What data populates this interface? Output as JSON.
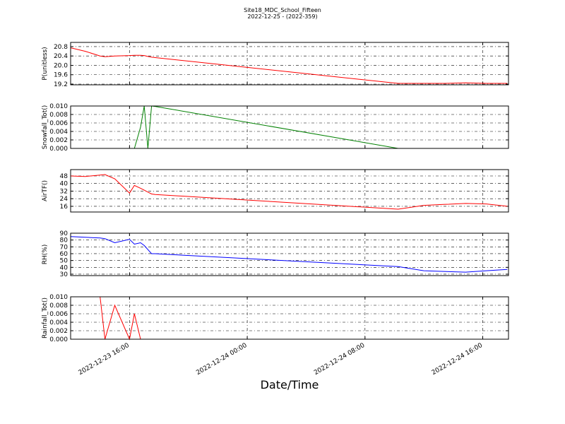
{
  "title": "Site18_MDC_School_Fifteen",
  "subtitle": "2022-12-25 - (2022-359)",
  "xlabel": "Date/Time",
  "xlim": [
    "2022-12-23 12:00",
    "2022-12-24 17:45"
  ],
  "xticks": [
    "2022-12-23 16:00",
    "2022-12-24 00:00",
    "2022-12-24 08:00",
    "2022-12-24 16:00"
  ],
  "chart_data": [
    {
      "type": "line",
      "ylabel": "P(unitless)",
      "grid": true,
      "x": [
        "2022-12-23 12:00",
        "2022-12-23 13:00",
        "2022-12-23 14:00",
        "2022-12-23 14:20",
        "2022-12-23 15:00",
        "2022-12-23 16:00",
        "2022-12-23 16:20",
        "2022-12-23 16:45",
        "2022-12-23 17:00",
        "2022-12-23 17:15",
        "2022-12-23 17:30",
        "2022-12-23 17:45",
        "2022-12-24 10:15",
        "2022-12-24 12:00",
        "2022-12-24 13:20",
        "2022-12-24 14:50",
        "2022-12-24 16:15",
        "2022-12-24 17:40"
      ],
      "series": [
        {
          "color": "#ff0000",
          "values": [
            20.75,
            20.6,
            20.4,
            20.37,
            20.4,
            20.42,
            20.43,
            20.43,
            20.42,
            20.38,
            20.35,
            20.33,
            19.23,
            19.23,
            19.23,
            19.25,
            19.23,
            19.23
          ]
        }
      ],
      "ylim": [
        19.17,
        20.98
      ],
      "yticks": [
        19.2,
        19.6,
        {
          "value": 20,
          "label": "20.0"
        },
        20.4,
        20.8
      ]
    },
    {
      "type": "line",
      "ylabel": "Snowfall_Tot()",
      "grid": true,
      "x": [
        "2022-12-23 12:00",
        "2022-12-23 13:00",
        "2022-12-23 14:00",
        "2022-12-23 14:20",
        "2022-12-23 15:00",
        "2022-12-23 16:00",
        "2022-12-23 16:20",
        "2022-12-23 16:45",
        "2022-12-23 17:00",
        "2022-12-23 17:15",
        "2022-12-23 17:30",
        "2022-12-23 17:45",
        "2022-12-24 10:15",
        "2022-12-24 12:00",
        "2022-12-24 13:20",
        "2022-12-24 14:50",
        "2022-12-24 16:15",
        "2022-12-24 17:40"
      ],
      "series": [
        {
          "color": "#008000",
          "values": [
            0,
            0,
            0,
            0,
            0,
            0,
            0,
            0.005,
            0.01,
            0,
            0.01,
            0.0099,
            0,
            0,
            0,
            0,
            0,
            0
          ]
        }
      ],
      "ylim": [
        0,
        0.01
      ],
      "yticks": [
        {
          "value": 0,
          "label": "0.000"
        },
        {
          "value": 0.002,
          "label": "0.002"
        },
        {
          "value": 0.004,
          "label": "0.004"
        },
        {
          "value": 0.006,
          "label": "0.006"
        },
        {
          "value": 0.008,
          "label": "0.008"
        },
        {
          "value": 0.01,
          "label": "0.010"
        }
      ]
    },
    {
      "type": "line",
      "ylabel": "AirTF()",
      "grid": true,
      "x": [
        "2022-12-23 12:00",
        "2022-12-23 13:00",
        "2022-12-23 14:00",
        "2022-12-23 14:20",
        "2022-12-23 15:00",
        "2022-12-23 16:00",
        "2022-12-23 16:20",
        "2022-12-23 16:45",
        "2022-12-23 17:00",
        "2022-12-23 17:15",
        "2022-12-23 17:30",
        "2022-12-23 17:45",
        "2022-12-24 10:15",
        "2022-12-24 12:00",
        "2022-12-24 13:20",
        "2022-12-24 14:50",
        "2022-12-24 16:15",
        "2022-12-24 17:40"
      ],
      "series": [
        {
          "color": "#ff0000",
          "values": [
            48,
            47.5,
            49,
            49.5,
            45,
            30,
            38,
            35,
            33,
            31,
            29,
            28.5,
            13,
            17,
            18,
            19,
            18.5,
            16
          ]
        }
      ],
      "ylim": [
        10,
        54.7
      ],
      "yticks": [
        16,
        24,
        32,
        40,
        48
      ]
    },
    {
      "type": "line",
      "ylabel": "RH(%)",
      "grid": true,
      "x": [
        "2022-12-23 12:00",
        "2022-12-23 13:00",
        "2022-12-23 14:00",
        "2022-12-23 14:20",
        "2022-12-23 15:00",
        "2022-12-23 16:00",
        "2022-12-23 16:20",
        "2022-12-23 16:45",
        "2022-12-23 17:00",
        "2022-12-23 17:15",
        "2022-12-23 17:30",
        "2022-12-23 17:45",
        "2022-12-24 10:15",
        "2022-12-24 12:00",
        "2022-12-24 13:20",
        "2022-12-24 14:50",
        "2022-12-24 16:15",
        "2022-12-24 17:40"
      ],
      "series": [
        {
          "color": "#0000ff",
          "values": [
            85,
            84,
            83,
            82,
            76,
            81,
            74,
            76,
            72,
            66,
            60,
            60,
            41,
            35,
            34,
            33,
            35,
            37
          ]
        }
      ],
      "ylim": [
        27.9,
        90
      ],
      "yticks": [
        30,
        40,
        50,
        60,
        70,
        80,
        90
      ]
    },
    {
      "type": "line",
      "ylabel": "Rainfall_Tot()",
      "grid": true,
      "x": [
        "2022-12-23 12:00",
        "2022-12-23 13:00",
        "2022-12-23 14:00",
        "2022-12-23 14:20",
        "2022-12-23 15:00",
        "2022-12-23 16:00",
        "2022-12-23 16:20",
        "2022-12-23 16:45",
        "2022-12-23 17:00",
        "2022-12-23 17:15",
        "2022-12-23 17:30",
        "2022-12-23 17:45",
        "2022-12-24 10:15",
        "2022-12-24 12:00",
        "2022-12-24 13:20",
        "2022-12-24 14:50",
        "2022-12-24 16:15",
        "2022-12-24 17:40"
      ],
      "series": [
        {
          "color": "#ff0000",
          "values": [
            0.01,
            0.01,
            0.01,
            0,
            0.008,
            0,
            0.006,
            0,
            0,
            0,
            0,
            0,
            0,
            0,
            0,
            0,
            0,
            0
          ]
        }
      ],
      "ylim": [
        0,
        0.01
      ],
      "yticks": [
        {
          "value": 0,
          "label": "0.000"
        },
        {
          "value": 0.002,
          "label": "0.002"
        },
        {
          "value": 0.004,
          "label": "0.004"
        },
        {
          "value": 0.006,
          "label": "0.006"
        },
        {
          "value": 0.008,
          "label": "0.008"
        },
        {
          "value": 0.01,
          "label": "0.010"
        }
      ]
    }
  ]
}
